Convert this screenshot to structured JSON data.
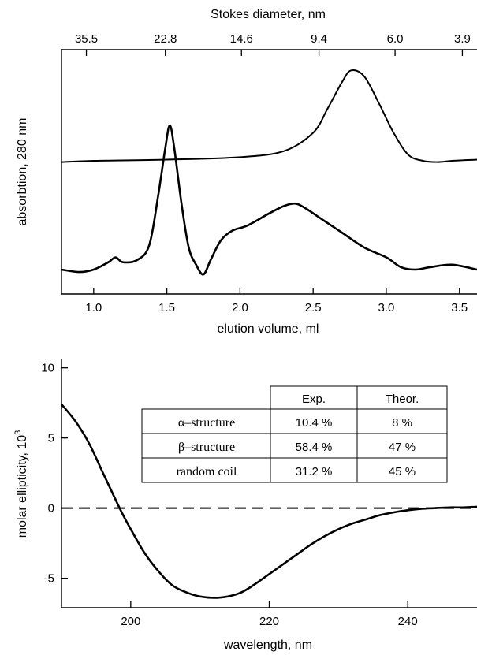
{
  "chart_data": [
    {
      "type": "line",
      "panel": "top",
      "xlabel": "elution volume, ml",
      "ylabel": "absorbtion, 280 nm",
      "secondary_xlabel": "Stokes diameter, nm",
      "x_ticks": [
        "1.0",
        "1.5",
        "2.0",
        "2.5",
        "3.0",
        "3.5"
      ],
      "xlim": [
        0.78,
        3.62
      ],
      "secondary_x_ticks": [
        {
          "label": "35.5",
          "at_elution_ml": 0.95
        },
        {
          "label": "22.8",
          "at_elution_ml": 1.49
        },
        {
          "label": "14.6",
          "at_elution_ml": 2.01
        },
        {
          "label": "9.4",
          "at_elution_ml": 2.54
        },
        {
          "label": "6.0",
          "at_elution_ml": 3.06
        },
        {
          "label": "3.9",
          "at_elution_ml": 3.52
        }
      ],
      "ylim": [
        0,
        1
      ],
      "y_ticks_shown": false,
      "series": [
        {
          "x": [
            0.78,
            1.0,
            1.5,
            2.0,
            2.3,
            2.5,
            2.6,
            2.7,
            2.76,
            2.85,
            2.95,
            3.05,
            3.15,
            3.25,
            3.35,
            3.45,
            3.62
          ],
          "y": [
            0.54,
            0.545,
            0.55,
            0.56,
            0.585,
            0.66,
            0.76,
            0.87,
            0.915,
            0.89,
            0.78,
            0.66,
            0.57,
            0.545,
            0.54,
            0.545,
            0.55
          ]
        },
        {
          "x": [
            0.78,
            0.9,
            1.0,
            1.1,
            1.15,
            1.2,
            1.3,
            1.38,
            1.44,
            1.49,
            1.52,
            1.55,
            1.6,
            1.65,
            1.7,
            1.75,
            1.8,
            1.87,
            1.95,
            2.05,
            2.2,
            2.3,
            2.38,
            2.45,
            2.55,
            2.7,
            2.85,
            3.0,
            3.1,
            3.2,
            3.3,
            3.45,
            3.62
          ],
          "y": [
            0.1,
            0.09,
            0.1,
            0.13,
            0.15,
            0.13,
            0.14,
            0.2,
            0.4,
            0.6,
            0.69,
            0.6,
            0.37,
            0.19,
            0.12,
            0.08,
            0.14,
            0.22,
            0.26,
            0.28,
            0.33,
            0.36,
            0.37,
            0.35,
            0.31,
            0.25,
            0.19,
            0.15,
            0.11,
            0.1,
            0.11,
            0.12,
            0.1
          ]
        }
      ]
    },
    {
      "type": "line",
      "panel": "bottom",
      "xlabel": "wavelength, nm",
      "ylabel": "molar ellipticity, 10",
      "ylabel_superscript": "3",
      "x_ticks": [
        200,
        220,
        240
      ],
      "y_ticks": [
        -5,
        0,
        5,
        10
      ],
      "xlim": [
        190,
        250
      ],
      "ylim": [
        -7.1,
        10.6
      ],
      "zero_line": "dashed",
      "series": [
        {
          "x": [
            190,
            192,
            194,
            196,
            198,
            199,
            200,
            202,
            204,
            206,
            208,
            210,
            212,
            214,
            216,
            218,
            220,
            222,
            224,
            226,
            228,
            230,
            232,
            234,
            236,
            238,
            240,
            242,
            244,
            246,
            248,
            250
          ],
          "y": [
            7.4,
            6.2,
            4.6,
            2.5,
            0.4,
            -0.6,
            -1.5,
            -3.2,
            -4.5,
            -5.5,
            -6.0,
            -6.3,
            -6.4,
            -6.3,
            -6.0,
            -5.4,
            -4.7,
            -4.0,
            -3.3,
            -2.6,
            -2.0,
            -1.5,
            -1.1,
            -0.8,
            -0.5,
            -0.3,
            -0.15,
            -0.05,
            0.0,
            0.05,
            0.05,
            0.1
          ]
        }
      ]
    }
  ],
  "table": {
    "headers": [
      "",
      "Exp.",
      "Theor."
    ],
    "rows": [
      {
        "label": "α–structure",
        "exp": "10.4 %",
        "theor": "8 %"
      },
      {
        "label": "β–structure",
        "exp": "58.4 %",
        "theor": "47 %"
      },
      {
        "label": "random coil",
        "exp": "31.2 %",
        "theor": "45 %"
      }
    ]
  }
}
